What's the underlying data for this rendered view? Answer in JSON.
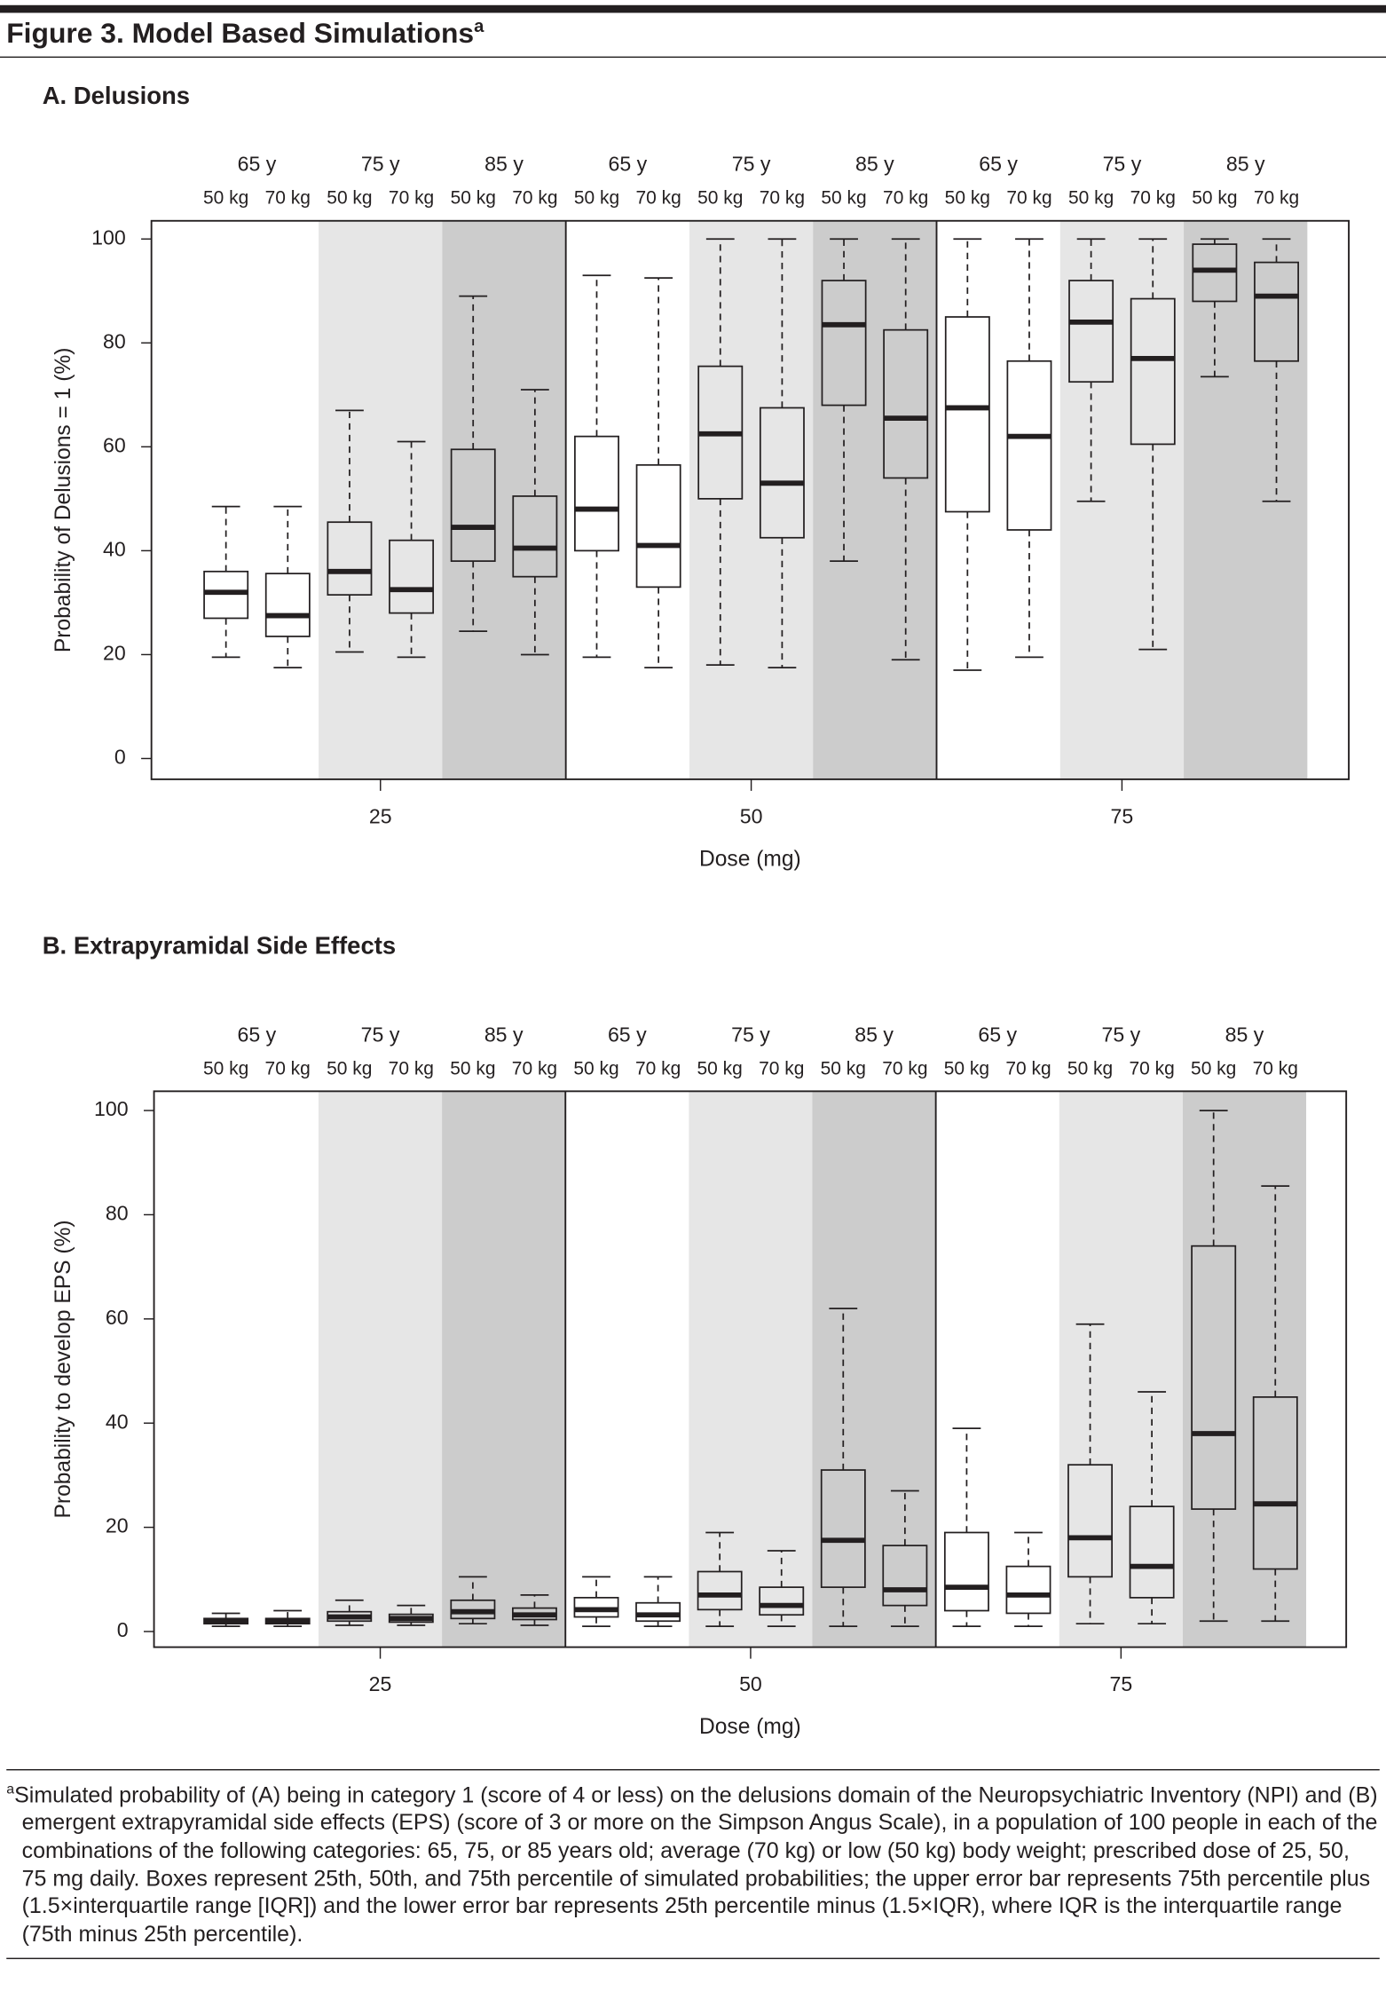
{
  "figure": {
    "title": "Figure 3. Model Based Simulations",
    "title_marker": "a",
    "footnote_marker": "a",
    "footnote": "Simulated probability of (A) being in category 1 (score of 4 or less) on the delusions domain of the Neuropsychiatric Inventory (NPI) and (B) emergent extrapyramidal side effects (EPS) (score of 3 or more on the Simpson Angus Scale), in a population of 100 people in each of the combinations of the following categories: 65, 75, or 85 years old; average (70 kg) or low (50 kg) body weight; prescribed dose of 25, 50, 75 mg daily. Boxes represent 25th, 50th, and 75th percentile of simulated probabilities; the upper error bar represents 75th percentile plus (1.5×interquartile range [IQR]) and the lower error bar represents 25th percentile minus (1.5×IQR), where IQR is the interquartile range (75th minus 25th percentile)."
  },
  "chart_data": [
    {
      "type": "box",
      "title": "A. Delusions",
      "xlabel": "Dose (mg)",
      "ylabel": "Probability of Delusions = 1 (%)",
      "doses": [
        "25",
        "50",
        "75"
      ],
      "ages": [
        "65 y",
        "75 y",
        "85 y"
      ],
      "weights": [
        "50 kg",
        "70 kg"
      ],
      "age_colors": [
        "#ffffff",
        "#e6e6e6",
        "#cccccc"
      ],
      "ylim": [
        -4,
        103.5
      ],
      "yticks": [
        0,
        20,
        40,
        60,
        80,
        100
      ],
      "boxes": [
        {
          "min": 19.5,
          "q1": 27,
          "median": 32,
          "q3": 36,
          "max": 48.5
        },
        {
          "min": 17.5,
          "q1": 23.5,
          "median": 27.5,
          "q3": 35.6,
          "max": 48.5
        },
        {
          "min": 20.5,
          "q1": 31.5,
          "median": 36,
          "q3": 45.5,
          "max": 67
        },
        {
          "min": 19.5,
          "q1": 28,
          "median": 32.5,
          "q3": 42,
          "max": 61
        },
        {
          "min": 24.5,
          "q1": 38,
          "median": 44.5,
          "q3": 59.5,
          "max": 89
        },
        {
          "min": 20,
          "q1": 35,
          "median": 40.5,
          "q3": 50.5,
          "max": 71
        },
        {
          "min": 19.5,
          "q1": 40,
          "median": 48,
          "q3": 62,
          "max": 93
        },
        {
          "min": 17.5,
          "q1": 33,
          "median": 41,
          "q3": 56.5,
          "max": 92.5
        },
        {
          "min": 18,
          "q1": 50,
          "median": 62.5,
          "q3": 75.5,
          "max": 100
        },
        {
          "min": 17.5,
          "q1": 42.5,
          "median": 53,
          "q3": 67.5,
          "max": 100
        },
        {
          "min": 38,
          "q1": 68,
          "median": 83.5,
          "q3": 92,
          "max": 100
        },
        {
          "min": 19,
          "q1": 54,
          "median": 65.5,
          "q3": 82.5,
          "max": 100
        },
        {
          "min": 17,
          "q1": 47.5,
          "median": 67.5,
          "q3": 85,
          "max": 100
        },
        {
          "min": 19.5,
          "q1": 44,
          "median": 62,
          "q3": 76.5,
          "max": 100
        },
        {
          "min": 49.5,
          "q1": 72.5,
          "median": 84,
          "q3": 92,
          "max": 100
        },
        {
          "min": 21,
          "q1": 60.5,
          "median": 77,
          "q3": 88.5,
          "max": 100
        },
        {
          "min": 73.5,
          "q1": 88,
          "median": 94,
          "q3": 99,
          "max": 100
        },
        {
          "min": 49.5,
          "q1": 76.5,
          "median": 89,
          "q3": 95.5,
          "max": 100
        }
      ]
    },
    {
      "type": "box",
      "title": "B. Extrapyramidal Side Effects",
      "xlabel": "Dose (mg)",
      "ylabel": "Probability to develop EPS (%)",
      "doses": [
        "25",
        "50",
        "75"
      ],
      "ages": [
        "65 y",
        "75 y",
        "85 y"
      ],
      "weights": [
        "50 kg",
        "70 kg"
      ],
      "age_colors": [
        "#ffffff",
        "#e6e6e6",
        "#cccccc"
      ],
      "ylim": [
        -3,
        103.7
      ],
      "yticks": [
        0,
        20,
        40,
        60,
        80,
        100
      ],
      "boxes": [
        {
          "min": 1,
          "q1": 1.5,
          "median": 2,
          "q3": 2.5,
          "max": 3.5
        },
        {
          "min": 1,
          "q1": 1.5,
          "median": 2,
          "q3": 2.5,
          "max": 4
        },
        {
          "min": 1.2,
          "q1": 2,
          "median": 2.8,
          "q3": 3.8,
          "max": 6
        },
        {
          "min": 1.2,
          "q1": 1.8,
          "median": 2.5,
          "q3": 3.3,
          "max": 5
        },
        {
          "min": 1.5,
          "q1": 2.5,
          "median": 3.8,
          "q3": 6,
          "max": 10.5
        },
        {
          "min": 1.2,
          "q1": 2.3,
          "median": 3.2,
          "q3": 4.5,
          "max": 7
        },
        {
          "min": 1,
          "q1": 2.8,
          "median": 4.2,
          "q3": 6.5,
          "max": 10.5
        },
        {
          "min": 1,
          "q1": 2,
          "median": 3.2,
          "q3": 5.5,
          "max": 10.5
        },
        {
          "min": 1,
          "q1": 4.2,
          "median": 7,
          "q3": 11.5,
          "max": 19
        },
        {
          "min": 1,
          "q1": 3.2,
          "median": 5,
          "q3": 8.5,
          "max": 15.5
        },
        {
          "min": 1,
          "q1": 8.5,
          "median": 17.5,
          "q3": 31,
          "max": 62
        },
        {
          "min": 1,
          "q1": 5,
          "median": 8,
          "q3": 16.5,
          "max": 27
        },
        {
          "min": 1,
          "q1": 4,
          "median": 8.5,
          "q3": 19,
          "max": 39
        },
        {
          "min": 1,
          "q1": 3.5,
          "median": 7,
          "q3": 12.5,
          "max": 19
        },
        {
          "min": 1.5,
          "q1": 10.5,
          "median": 18,
          "q3": 32,
          "max": 59
        },
        {
          "min": 1.5,
          "q1": 6.5,
          "median": 12.5,
          "q3": 24,
          "max": 46
        },
        {
          "min": 2,
          "q1": 23.5,
          "median": 38,
          "q3": 74,
          "max": 100
        },
        {
          "min": 2,
          "q1": 12,
          "median": 24.5,
          "q3": 45,
          "max": 85.5
        }
      ]
    }
  ]
}
